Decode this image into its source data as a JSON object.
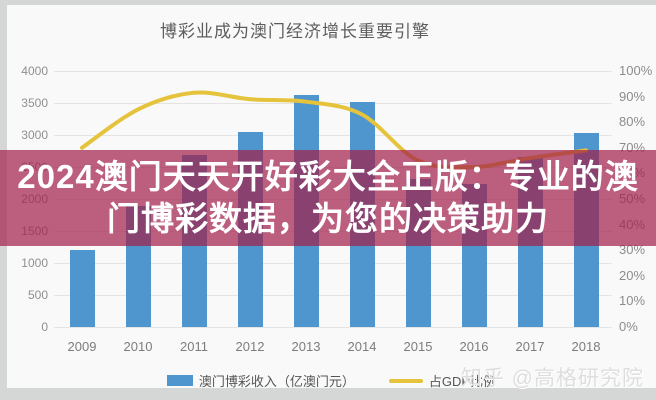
{
  "chart": {
    "title": "博彩业成为澳门经济增长重要引擎",
    "legend": [
      {
        "label": "澳门博彩收入（亿澳门元）",
        "type": "bar",
        "color": "#4e96cd"
      },
      {
        "label": "占GDP比例",
        "type": "line",
        "color": "#e5c33c"
      }
    ]
  },
  "banner": {
    "line1": "2024澳门天天开好彩大全正版：专业的澳",
    "line2": "门博彩数据，为您的决策助力",
    "bg_color": "rgba(163,28,72,0.70)",
    "text_color": "#ffffff"
  },
  "watermark": {
    "text": "知乎 @高格研究院"
  },
  "chart_data": {
    "type": "bar",
    "title": "博彩业成为澳门经济增长重要引擎",
    "categories": [
      "2009",
      "2010",
      "2011",
      "2012",
      "2013",
      "2014",
      "2015",
      "2016",
      "2017",
      "2018"
    ],
    "series": [
      {
        "name": "澳门博彩收入（亿澳门元）",
        "type": "bar",
        "axis": "left",
        "color": "#4e96cd",
        "values": [
          1203,
          1896,
          2691,
          3052,
          3618,
          3515,
          2309,
          2232,
          2657,
          3038
        ]
      },
      {
        "name": "占GDP比例",
        "type": "line",
        "axis": "right",
        "color": "#e5c33c",
        "unit": "%",
        "values": [
          70,
          85,
          91.5,
          89,
          88,
          83,
          65,
          62.5,
          66,
          69
        ]
      }
    ],
    "left_axis": {
      "min": 0,
      "max": 4000,
      "step": 500,
      "ticks": [
        "4000",
        "3500",
        "3000",
        "2500",
        "2000",
        "1500",
        "1000",
        "500",
        "0"
      ]
    },
    "right_axis": {
      "min": 0,
      "max": 100,
      "step": 10,
      "unit": "%",
      "ticks": [
        "100%",
        "90%",
        "80%",
        "70%",
        "60%",
        "50%",
        "40%",
        "30%",
        "20%",
        "10%",
        "0%"
      ]
    },
    "grid": true,
    "legend_position": "bottom"
  }
}
